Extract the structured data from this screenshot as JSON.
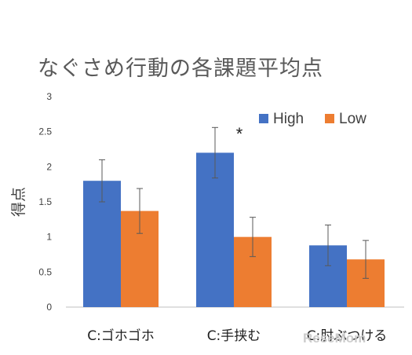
{
  "chart_data": {
    "type": "bar",
    "title": "なぐさめ行動の各課題平均点",
    "ylabel": "得点",
    "xlabel": "",
    "ylim": [
      0,
      3
    ],
    "yticks": [
      "0",
      "0.5",
      "1",
      "1.5",
      "2",
      "2.5",
      "3"
    ],
    "categories": [
      "C:ゴホゴホ",
      "C:手挟む",
      "C:肘ぶつける"
    ],
    "series": [
      {
        "name": "High",
        "color": "#4472c4",
        "values": [
          1.8,
          2.2,
          0.88
        ],
        "errors": [
          0.3,
          0.36,
          0.29
        ]
      },
      {
        "name": "Low",
        "color": "#ed7d31",
        "values": [
          1.37,
          1.0,
          0.68
        ],
        "errors": [
          0.32,
          0.28,
          0.27
        ]
      }
    ],
    "annotations": [
      {
        "text": "*",
        "category": "C:手挟む"
      }
    ],
    "legend": "top-right",
    "grid": false
  },
  "watermark": "ReseMom"
}
